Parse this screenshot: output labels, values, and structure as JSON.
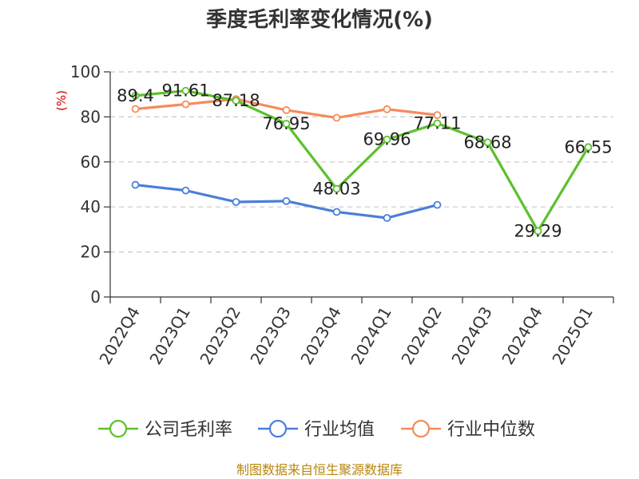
{
  "chart_data": {
    "type": "line",
    "title": "季度毛利率变化情况(%)",
    "ylabel": "(%)",
    "xlabel": "",
    "categories": [
      "2022Q4",
      "2023Q1",
      "2023Q2",
      "2023Q3",
      "2023Q4",
      "2024Q1",
      "2024Q2",
      "2024Q3",
      "2024Q4",
      "2025Q1"
    ],
    "ylim": [
      0,
      100
    ],
    "yticks": [
      0,
      20,
      40,
      60,
      80,
      100
    ],
    "grid": "horizontal dashed",
    "legend_position": "bottom",
    "series": [
      {
        "name": "公司毛利率",
        "color": "#5cc12b",
        "values": [
          89.4,
          91.61,
          87.18,
          76.95,
          48.03,
          69.96,
          77.11,
          68.68,
          29.29,
          66.55
        ],
        "labels": [
          "89.4",
          "91.61",
          "87.18",
          "76.95",
          "48.03",
          "69.96",
          "77.11",
          "68.68",
          "29.29",
          "66.55"
        ]
      },
      {
        "name": "行业均值",
        "color": "#4a7fd9",
        "values": [
          49.8,
          47.3,
          42.2,
          42.6,
          37.8,
          35.1,
          40.9,
          null,
          null,
          null
        ]
      },
      {
        "name": "行业中位数",
        "color": "#f58b5c",
        "values": [
          83.5,
          85.6,
          87.9,
          83.0,
          79.6,
          83.4,
          80.8,
          null,
          null,
          null
        ]
      }
    ]
  },
  "source_text": "制图数据来自恒生聚源数据库"
}
